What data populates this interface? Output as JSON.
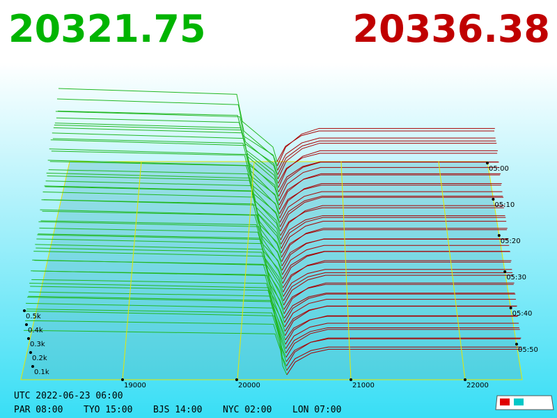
{
  "bid_price": "20321.75",
  "ask_price": "20336.38",
  "depth_labels": [
    "0.5k",
    "0.4k",
    "0.3k",
    "0.2k",
    "0.1k"
  ],
  "price_labels": [
    "19000",
    "20000",
    "21000",
    "22000"
  ],
  "time_labels": [
    "05:00",
    "05:10",
    "05:20",
    "05:30",
    "05:40",
    "05:50"
  ],
  "clock": {
    "utc": "UTC 2022-06-23 06:00",
    "zones": [
      "PAR 08:00",
      "TYO 15:00",
      "BJS 14:00",
      "NYC 02:00",
      "LON 07:00"
    ]
  }
}
